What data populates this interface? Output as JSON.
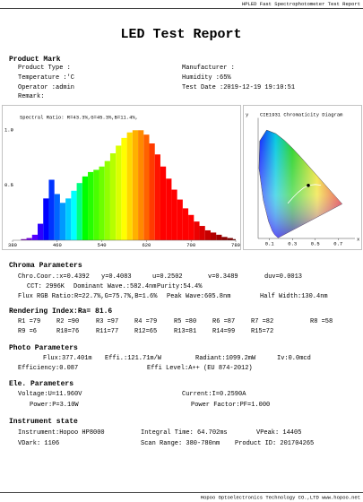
{
  "header": {
    "top": "HPLED Fast Spectrophotometer Test Report",
    "title": "LED Test Report"
  },
  "product": {
    "heading": "Product Mark",
    "fields": [
      [
        "Product Type :",
        "Manufacturer :"
      ],
      [
        "Temperature :'C",
        "Humidity :65%"
      ],
      [
        "Operator :admin",
        "Test Date :2019-12-19 19:10:51"
      ],
      [
        "Remark:"
      ]
    ]
  },
  "spectrum": {
    "type": "bar",
    "annotation": "Spectral Ratio: R=43.3%,G=45.3%,B=11.4%,",
    "x": [
      380,
      390,
      400,
      410,
      420,
      430,
      440,
      450,
      460,
      470,
      480,
      490,
      500,
      510,
      520,
      530,
      540,
      550,
      560,
      570,
      580,
      590,
      600,
      610,
      620,
      630,
      640,
      650,
      660,
      670,
      680,
      690,
      700,
      710,
      720,
      730,
      740,
      750,
      760,
      770,
      780
    ],
    "values": [
      0,
      0,
      0.01,
      0.02,
      0.05,
      0.15,
      0.38,
      0.55,
      0.42,
      0.34,
      0.38,
      0.45,
      0.52,
      0.58,
      0.62,
      0.64,
      0.67,
      0.72,
      0.79,
      0.86,
      0.93,
      0.98,
      1,
      1,
      0.96,
      0.88,
      0.78,
      0.67,
      0.56,
      0.46,
      0.37,
      0.29,
      0.23,
      0.17,
      0.13,
      0.09,
      0.07,
      0.05,
      0.03,
      0.02,
      0.01
    ],
    "xlim": [
      380,
      780
    ],
    "ylim": [
      0,
      1.1
    ],
    "xticks": [
      380,
      460,
      540,
      620,
      700,
      780
    ],
    "yticks": [
      0.5,
      {
        "value": 1,
        "label": "1.0"
      }
    ]
  },
  "cie": {
    "type": "scatter",
    "title": "CIE1931 Chromaticity Diagram",
    "x_label": "x",
    "y_label": "y",
    "xlim": [
      0,
      0.8
    ],
    "ylim": [
      0,
      0.9
    ],
    "xticks": [
      0.1,
      0.3,
      0.5,
      0.7
    ],
    "x": [
      0.4392
    ],
    "y": [
      0.4083
    ]
  },
  "chroma": {
    "heading": "Chroma Parameters",
    "rows": [
      [
        "Chro.Coor.:x=0.4392",
        "y=0.4083",
        "u=0.2502",
        "v=0.3489",
        "duv=0.0013"
      ],
      [
        "CCT: 2996K",
        "Dominant Wave.:582.4nm",
        "Purity:54.4%"
      ],
      [
        "Flux RGB Ratio:R=22.7%,G=75.7%,B=1.6%",
        "Peak Wave:605.8nm",
        "Half Width:130.4nm"
      ]
    ]
  },
  "rendering": {
    "heading": "Rendering Index:Ra= 81.6",
    "rows": [
      [
        "R1 =79",
        "R2 =90",
        "R3 =97",
        "R4 =79",
        "R5 =80",
        "R6 =87",
        "R7 =82",
        "R8 =58"
      ],
      [
        "R9 =6",
        "R10=76",
        "R11=77",
        "R12=65",
        "R13=81",
        "R14=99",
        "R15=72"
      ]
    ]
  },
  "photo": {
    "heading": "Photo Parameters",
    "rows": [
      [
        "Flux:377.401m",
        "Effi.:121.71m/W",
        "Radiant:1099.2mW",
        "Iv:0.0mcd"
      ],
      [
        "Efficiency:0.087",
        "Effi Level:A++ (EU 874-2012)"
      ]
    ]
  },
  "electrical": {
    "heading": "Ele. Parameters",
    "rows": [
      [
        "Voltage:U=11.960V",
        "Current:I=0.2590A"
      ],
      [
        "Power:P=3.10W",
        "Power Factor:PF=1.000"
      ]
    ]
  },
  "instrument": {
    "heading": "Instrument state",
    "rows": [
      [
        "Instrument:Hopoo HP8000",
        "Integral Time: 64.702ms",
        "VPeak: 14405"
      ],
      [
        "VDark: 1106",
        "Scan Range: 380-780nm",
        "Product ID: 201704265"
      ]
    ]
  },
  "footer": {
    "text": "Hopoo Optoelectronics Technology CO.,LTD www.hopoo.net"
  }
}
